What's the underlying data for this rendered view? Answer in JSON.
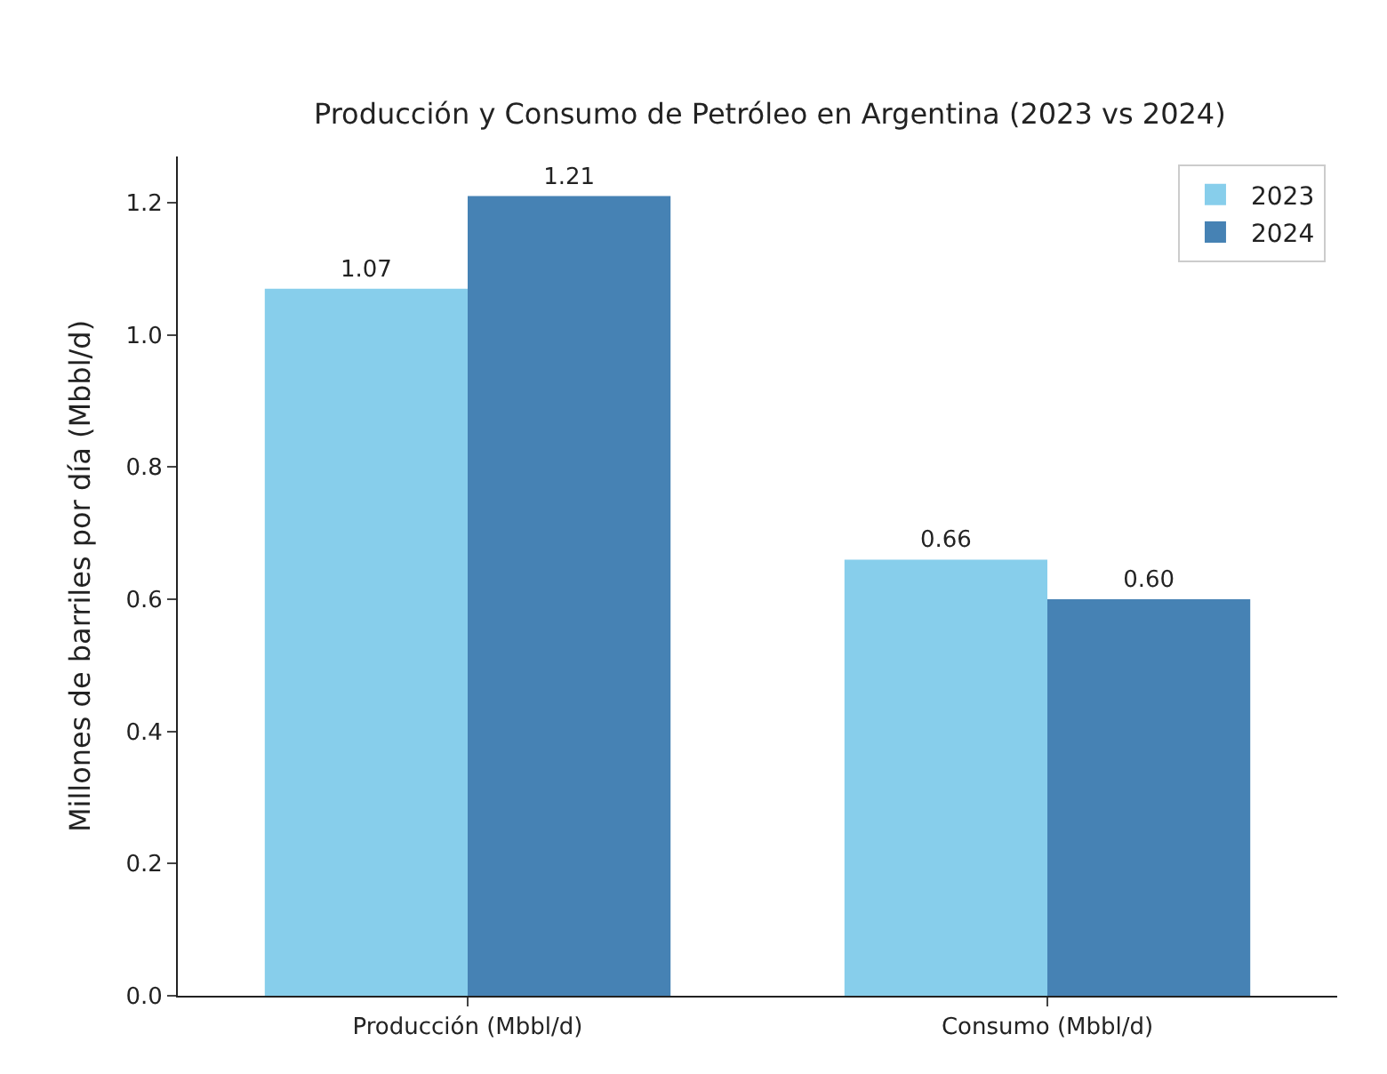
{
  "chart_data": {
    "type": "bar",
    "title": "Producción y Consumo de Petróleo en Argentina (2023 vs 2024)",
    "ylabel": "Millones de barriles por día (Mbbl/d)",
    "categories": [
      "Producción (Mbbl/d)",
      "Consumo (Mbbl/d)"
    ],
    "series": [
      {
        "name": "2023",
        "color": "#87ceeb",
        "values": [
          1.07,
          0.66
        ],
        "value_labels": [
          "1.07",
          "0.66"
        ]
      },
      {
        "name": "2024",
        "color": "#4682b4",
        "values": [
          1.21,
          0.6
        ],
        "value_labels": [
          "1.21",
          "0.60"
        ]
      }
    ],
    "ylim": [
      0,
      1.27
    ],
    "yticks": [
      "0.0",
      "0.2",
      "0.4",
      "0.6",
      "0.8",
      "1.0",
      "1.2"
    ],
    "legend": "top right"
  }
}
